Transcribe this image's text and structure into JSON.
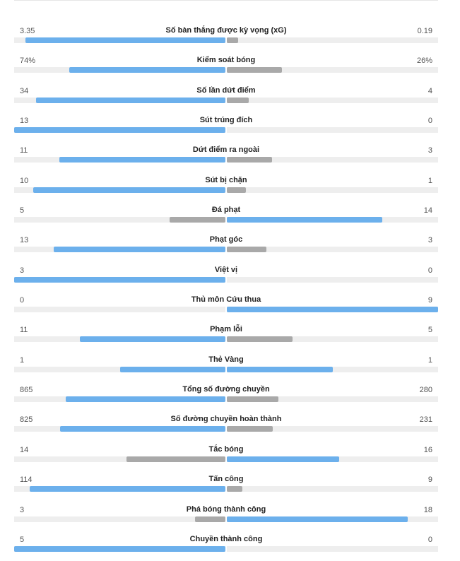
{
  "colors": {
    "leader": "#6cb0ec",
    "trailer": "#a9a9a9",
    "track": "#eeeeee"
  },
  "stats": [
    {
      "label": "Số bàn thắng được kỳ vọng (xG)",
      "home": "3.35",
      "away": "0.19",
      "home_share": 0.946,
      "away_share": 0.054
    },
    {
      "label": "Kiểm soát bóng",
      "home": "74%",
      "away": "26%",
      "home_share": 0.74,
      "away_share": 0.26
    },
    {
      "label": "Số lần dứt điểm",
      "home": "34",
      "away": "4",
      "home_share": 0.895,
      "away_share": 0.105
    },
    {
      "label": "Sút trúng đích",
      "home": "13",
      "away": "0",
      "home_share": 1.0,
      "away_share": 0.0
    },
    {
      "label": "Dứt điểm ra ngoài",
      "home": "11",
      "away": "3",
      "home_share": 0.786,
      "away_share": 0.214
    },
    {
      "label": "Sút bị chặn",
      "home": "10",
      "away": "1",
      "home_share": 0.909,
      "away_share": 0.091
    },
    {
      "label": "Đá phạt",
      "home": "5",
      "away": "14",
      "home_share": 0.263,
      "away_share": 0.737
    },
    {
      "label": "Phạt góc",
      "home": "13",
      "away": "3",
      "home_share": 0.8125,
      "away_share": 0.1875
    },
    {
      "label": "Việt vị",
      "home": "3",
      "away": "0",
      "home_share": 1.0,
      "away_share": 0.0
    },
    {
      "label": "Thủ môn Cứu thua",
      "home": "0",
      "away": "9",
      "home_share": 0.0,
      "away_share": 1.0
    },
    {
      "label": "Phạm lỗi",
      "home": "11",
      "away": "5",
      "home_share": 0.6875,
      "away_share": 0.3125
    },
    {
      "label": "Thẻ Vàng",
      "home": "1",
      "away": "1",
      "home_share": 0.5,
      "away_share": 0.5
    },
    {
      "label": "Tổng số đường chuyền",
      "home": "865",
      "away": "280",
      "home_share": 0.755,
      "away_share": 0.245
    },
    {
      "label": "Số đường chuyền hoàn thành",
      "home": "825",
      "away": "231",
      "home_share": 0.781,
      "away_share": 0.219
    },
    {
      "label": "Tắc bóng",
      "home": "14",
      "away": "16",
      "home_share": 0.467,
      "away_share": 0.533
    },
    {
      "label": "Tấn công",
      "home": "114",
      "away": "9",
      "home_share": 0.927,
      "away_share": 0.073
    },
    {
      "label": "Phá bóng thành công",
      "home": "3",
      "away": "18",
      "home_share": 0.143,
      "away_share": 0.857
    },
    {
      "label": "Chuyền thành công",
      "home": "5",
      "away": "0",
      "home_share": 1.0,
      "away_share": 0.0
    }
  ]
}
